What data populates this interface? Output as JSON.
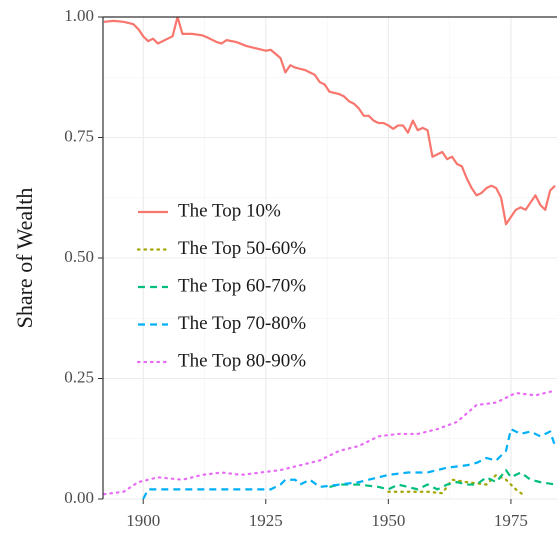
{
  "chart_data": {
    "type": "line",
    "y_label": "Share of Wealth",
    "xlim": [
      1891.8,
      1984.4
    ],
    "xticks": [
      1900,
      1925,
      1950,
      1975
    ],
    "ylim": [
      0,
      1
    ],
    "yticks": [
      {
        "value": 0,
        "label": "0.00"
      },
      {
        "value": 0.25,
        "label": "0.25"
      },
      {
        "value": 0.5,
        "label": "0.50"
      },
      {
        "value": 0.75,
        "label": "0.75"
      },
      {
        "value": 1,
        "label": "1.00"
      }
    ],
    "grid": true,
    "legend_position": "left",
    "series": [
      {
        "name": "The Top 10%",
        "color": "#F8766D",
        "linetype": "solid",
        "x": [
          1892,
          1894,
          1896,
          1898,
          1899,
          1900,
          1901,
          1902,
          1903,
          1905,
          1906,
          1907,
          1908,
          1910,
          1912,
          1913,
          1915,
          1916,
          1917,
          1919,
          1921,
          1923,
          1925,
          1926,
          1928,
          1929,
          1930,
          1931,
          1933,
          1935,
          1936,
          1937,
          1938,
          1940,
          1941,
          1942,
          1943,
          1944,
          1945,
          1946,
          1947,
          1948,
          1949,
          1950,
          1951,
          1952,
          1953,
          1954,
          1955,
          1956,
          1957,
          1958,
          1959,
          1960,
          1961,
          1962,
          1963,
          1964,
          1965,
          1966,
          1967,
          1968,
          1969,
          1970,
          1971,
          1972,
          1973,
          1974,
          1975,
          1976,
          1977,
          1978,
          1979,
          1980,
          1981,
          1982,
          1983,
          1984
        ],
        "values": [
          0.99,
          0.992,
          0.99,
          0.985,
          0.975,
          0.96,
          0.95,
          0.955,
          0.945,
          0.955,
          0.96,
          1.0,
          0.965,
          0.965,
          0.962,
          0.958,
          0.948,
          0.945,
          0.952,
          0.948,
          0.94,
          0.935,
          0.93,
          0.932,
          0.915,
          0.885,
          0.9,
          0.895,
          0.89,
          0.88,
          0.865,
          0.86,
          0.845,
          0.84,
          0.835,
          0.825,
          0.82,
          0.81,
          0.795,
          0.795,
          0.785,
          0.78,
          0.78,
          0.775,
          0.768,
          0.775,
          0.775,
          0.76,
          0.785,
          0.765,
          0.77,
          0.765,
          0.71,
          0.715,
          0.72,
          0.705,
          0.71,
          0.695,
          0.69,
          0.665,
          0.645,
          0.63,
          0.635,
          0.645,
          0.65,
          0.645,
          0.625,
          0.57,
          0.585,
          0.6,
          0.605,
          0.6,
          0.615,
          0.63,
          0.61,
          0.6,
          0.64,
          0.65
        ]
      },
      {
        "name": "The Top 50-60%",
        "color": "#A3A500",
        "linetype": "dotted",
        "x": [
          1950,
          1954,
          1958,
          1961,
          1963,
          1966,
          1970,
          1972,
          1974,
          1976,
          1978
        ],
        "values": [
          0.015,
          0.015,
          0.015,
          0.012,
          0.04,
          0.035,
          0.03,
          0.05,
          0.04,
          0.02,
          0.005
        ]
      },
      {
        "name": "The Top 60-70%",
        "color": "#00BF7D",
        "linetype": "dashed",
        "x": [
          1938,
          1940,
          1944,
          1948,
          1950,
          1952,
          1954,
          1956,
          1958,
          1960,
          1962,
          1964,
          1966,
          1968,
          1970,
          1972,
          1974,
          1975,
          1977,
          1979,
          1981,
          1984
        ],
        "values": [
          0.025,
          0.03,
          0.03,
          0.025,
          0.02,
          0.03,
          0.025,
          0.02,
          0.03,
          0.02,
          0.03,
          0.035,
          0.03,
          0.03,
          0.045,
          0.035,
          0.06,
          0.045,
          0.055,
          0.04,
          0.035,
          0.03
        ]
      },
      {
        "name": "The Top 70-80%",
        "color": "#00B0F6",
        "linetype": "dashed",
        "x": [
          1900,
          1901,
          1910,
          1920,
          1926,
          1928,
          1929,
          1931,
          1932,
          1934,
          1936,
          1940,
          1944,
          1948,
          1950,
          1954,
          1958,
          1962,
          1966,
          1968,
          1970,
          1972,
          1974,
          1975,
          1977,
          1979,
          1981,
          1983,
          1984
        ],
        "values": [
          0,
          0.02,
          0.02,
          0.02,
          0.02,
          0.03,
          0.04,
          0.04,
          0.03,
          0.04,
          0.025,
          0.03,
          0.035,
          0.045,
          0.05,
          0.055,
          0.055,
          0.065,
          0.07,
          0.075,
          0.085,
          0.08,
          0.1,
          0.145,
          0.135,
          0.14,
          0.13,
          0.14,
          0.11
        ]
      },
      {
        "name": "The Top 80-90%",
        "color": "#E76BF3",
        "linetype": "dotted",
        "x": [
          1892,
          1896,
          1899,
          1903,
          1908,
          1912,
          1916,
          1920,
          1924,
          1928,
          1932,
          1936,
          1940,
          1944,
          1948,
          1952,
          1956,
          1960,
          1964,
          1968,
          1972,
          1976,
          1980,
          1984
        ],
        "values": [
          0.01,
          0.015,
          0.035,
          0.045,
          0.04,
          0.05,
          0.055,
          0.05,
          0.055,
          0.06,
          0.07,
          0.08,
          0.1,
          0.11,
          0.13,
          0.135,
          0.135,
          0.145,
          0.16,
          0.195,
          0.2,
          0.22,
          0.215,
          0.225
        ]
      }
    ]
  }
}
